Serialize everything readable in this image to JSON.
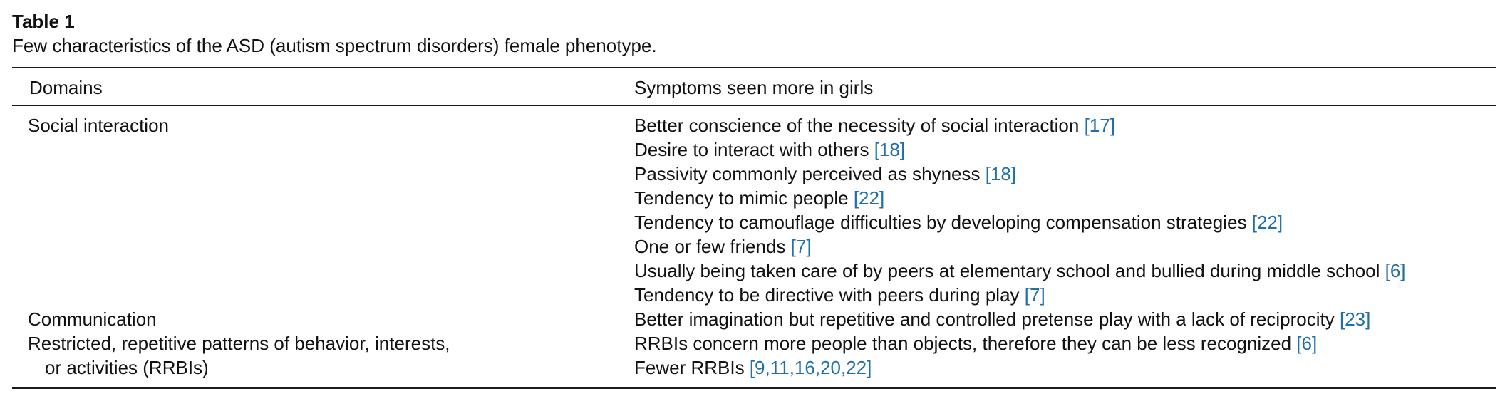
{
  "table": {
    "label": "Table 1",
    "caption": "Few characteristics of the ASD (autism spectrum disorders) female phenotype.",
    "headers": {
      "col1": "Domains",
      "col2": "Symptoms seen more in girls"
    },
    "domains": [
      {
        "line1": "Social interaction",
        "line2": ""
      },
      {
        "line1": "Communication",
        "line2": ""
      },
      {
        "line1": "Restricted, repetitive patterns of behavior, interests,",
        "line2": "or activities (RRBIs)"
      }
    ],
    "symptoms": [
      {
        "text": "Better conscience of the necessity of social interaction ",
        "ref": "[17]"
      },
      {
        "text": "Desire to interact with others ",
        "ref": "[18]"
      },
      {
        "text": "Passivity commonly perceived as shyness ",
        "ref": "[18]"
      },
      {
        "text": "Tendency to mimic people ",
        "ref": "[22]"
      },
      {
        "text": "Tendency to camouflage difficulties by developing compensation strategies ",
        "ref": "[22]"
      },
      {
        "text": "One or few friends ",
        "ref": "[7]"
      },
      {
        "text": "Usually being taken care of by peers at elementary school and bullied during middle school ",
        "ref": "[6]"
      },
      {
        "text": "Tendency to be directive with peers during play ",
        "ref": "[7]"
      },
      {
        "text": "Better imagination but repetitive and controlled pretense play with a lack of reciprocity ",
        "ref": "[23]"
      },
      {
        "text": "RRBIs concern more people than objects, therefore they can be less recognized ",
        "ref": "[6]"
      },
      {
        "text": "Fewer RRBIs ",
        "ref": "[9,11,16,20,22]"
      }
    ]
  }
}
